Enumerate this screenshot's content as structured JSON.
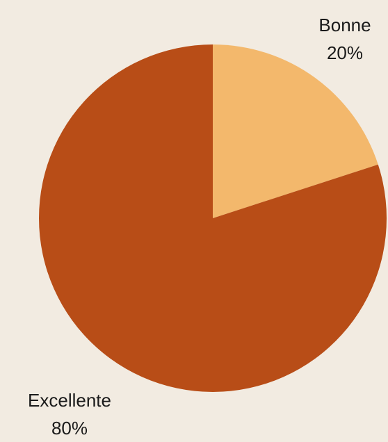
{
  "chart_data": {
    "type": "pie",
    "categories": [
      "Bonne",
      "Excellente"
    ],
    "values": [
      20,
      80
    ],
    "value_labels": [
      "20%",
      "80%"
    ],
    "colors": [
      "#f3b86c",
      "#b84d17"
    ]
  }
}
